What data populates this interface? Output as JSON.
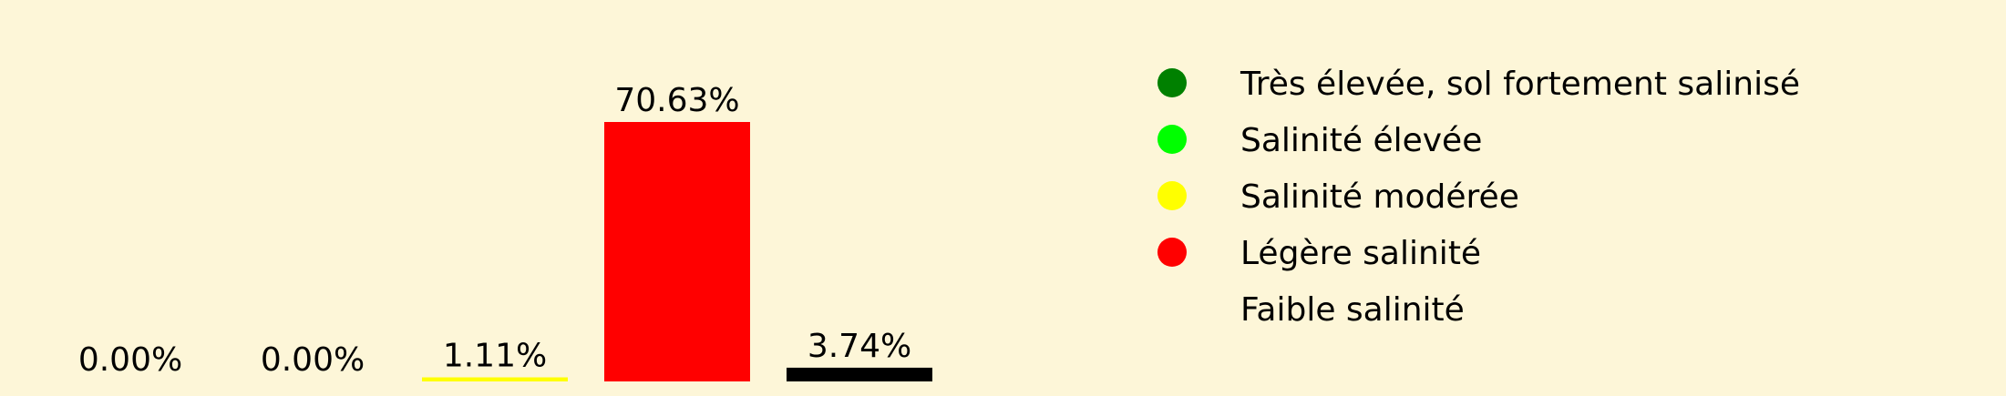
{
  "chart_data": {
    "type": "bar",
    "categories": [
      "Très élevée, sol fortement salinisé",
      "Salinité élevée",
      "Salinité modérée",
      "Légère salinité",
      "Faible salinité"
    ],
    "values": [
      0.0,
      0.0,
      1.11,
      70.63,
      3.74
    ],
    "value_labels": [
      "0.00%",
      "0.00%",
      "1.11%",
      "70.63%",
      "3.74%"
    ],
    "colors": [
      "#008000",
      "#00ff00",
      "#ffff00",
      "#ff0000",
      "#000000"
    ],
    "ylim": [
      0,
      70.63
    ],
    "grid": false,
    "legend_position": "right"
  },
  "legend": {
    "items": [
      {
        "label": "Très élevée, sol fortement salinisé",
        "color": "#008000",
        "marker": true
      },
      {
        "label": "Salinité élevée",
        "color": "#00ff00",
        "marker": true
      },
      {
        "label": "Salinité modérée",
        "color": "#ffff00",
        "marker": true
      },
      {
        "label": "Légère salinité",
        "color": "#ff0000",
        "marker": true
      },
      {
        "label": "Faible salinité",
        "color": "#000000",
        "marker": false
      }
    ]
  }
}
